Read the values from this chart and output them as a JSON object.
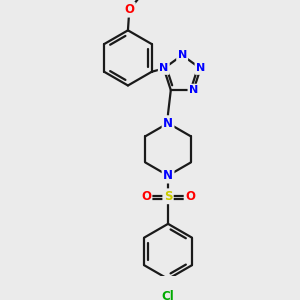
{
  "background_color": "#ebebeb",
  "bond_color": "#1a1a1a",
  "bond_width": 1.6,
  "atom_colors": {
    "N": "#0000ff",
    "O": "#ff0000",
    "S": "#cccc00",
    "Cl": "#00aa00",
    "C": "#1a1a1a"
  },
  "figsize": [
    3.0,
    3.0
  ],
  "dpi": 100,
  "xlim": [
    0,
    10
  ],
  "ylim": [
    0,
    10
  ]
}
